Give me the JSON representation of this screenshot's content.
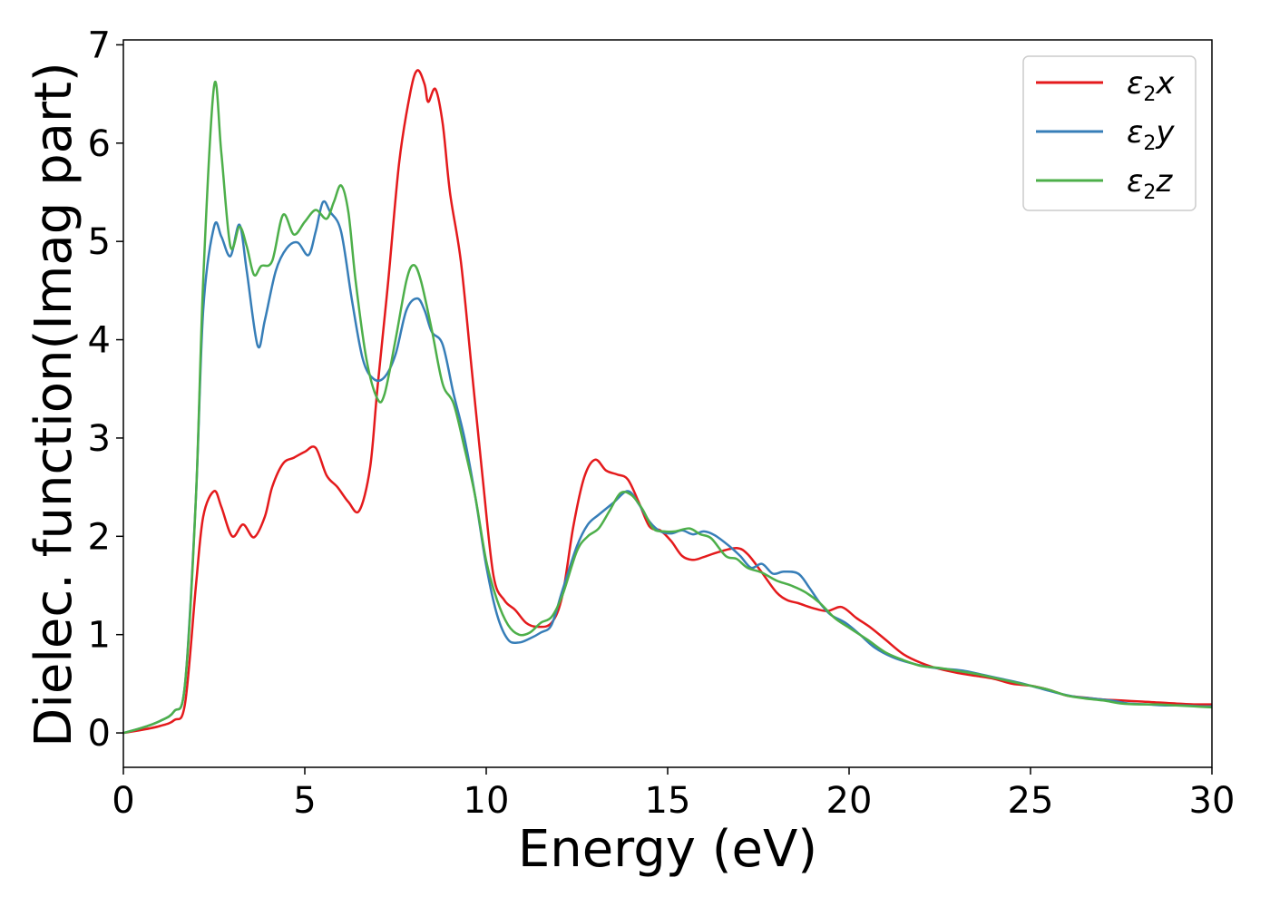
{
  "chart_data": {
    "type": "line",
    "xlabel": "Energy (eV)",
    "ylabel": "Dielec. function(Imag part)",
    "xlim": [
      0,
      30
    ],
    "ylim": [
      -0.35,
      7.05
    ],
    "xticks": [
      0,
      5,
      10,
      15,
      20,
      25,
      30
    ],
    "yticks": [
      0,
      1,
      2,
      3,
      4,
      5,
      6,
      7
    ],
    "grid": false,
    "legend_position": "top-right",
    "series": [
      {
        "name": "ε2x",
        "legend_base": "ε",
        "legend_sub": "2",
        "legend_suffix": "x",
        "color": "#e41a1c",
        "points": [
          [
            0,
            0
          ],
          [
            0.5,
            0.03
          ],
          [
            1.0,
            0.07
          ],
          [
            1.4,
            0.13
          ],
          [
            1.7,
            0.3
          ],
          [
            2.0,
            1.5
          ],
          [
            2.2,
            2.2
          ],
          [
            2.5,
            2.46
          ],
          [
            2.7,
            2.3
          ],
          [
            3.0,
            2.0
          ],
          [
            3.3,
            2.12
          ],
          [
            3.6,
            1.99
          ],
          [
            3.9,
            2.2
          ],
          [
            4.1,
            2.5
          ],
          [
            4.4,
            2.74
          ],
          [
            4.7,
            2.8
          ],
          [
            5.0,
            2.86
          ],
          [
            5.3,
            2.9
          ],
          [
            5.6,
            2.62
          ],
          [
            5.9,
            2.5
          ],
          [
            6.2,
            2.35
          ],
          [
            6.5,
            2.26
          ],
          [
            6.8,
            2.7
          ],
          [
            7.0,
            3.5
          ],
          [
            7.3,
            4.6
          ],
          [
            7.6,
            5.8
          ],
          [
            7.9,
            6.5
          ],
          [
            8.1,
            6.74
          ],
          [
            8.3,
            6.6
          ],
          [
            8.4,
            6.42
          ],
          [
            8.6,
            6.55
          ],
          [
            8.8,
            6.2
          ],
          [
            9.0,
            5.5
          ],
          [
            9.3,
            4.8
          ],
          [
            9.6,
            3.7
          ],
          [
            9.9,
            2.6
          ],
          [
            10.2,
            1.6
          ],
          [
            10.5,
            1.35
          ],
          [
            10.8,
            1.25
          ],
          [
            11.1,
            1.12
          ],
          [
            11.4,
            1.08
          ],
          [
            11.8,
            1.12
          ],
          [
            12.1,
            1.4
          ],
          [
            12.4,
            2.1
          ],
          [
            12.7,
            2.6
          ],
          [
            13.0,
            2.78
          ],
          [
            13.3,
            2.67
          ],
          [
            13.6,
            2.63
          ],
          [
            13.9,
            2.58
          ],
          [
            14.2,
            2.35
          ],
          [
            14.5,
            2.1
          ],
          [
            14.8,
            2.06
          ],
          [
            15.1,
            1.95
          ],
          [
            15.4,
            1.8
          ],
          [
            15.7,
            1.76
          ],
          [
            16.0,
            1.79
          ],
          [
            16.4,
            1.84
          ],
          [
            16.9,
            1.88
          ],
          [
            17.2,
            1.82
          ],
          [
            17.6,
            1.63
          ],
          [
            18.0,
            1.43
          ],
          [
            18.3,
            1.35
          ],
          [
            18.6,
            1.32
          ],
          [
            19.0,
            1.27
          ],
          [
            19.4,
            1.24
          ],
          [
            19.8,
            1.28
          ],
          [
            20.2,
            1.17
          ],
          [
            20.6,
            1.07
          ],
          [
            21.0,
            0.95
          ],
          [
            21.5,
            0.8
          ],
          [
            22.0,
            0.71
          ],
          [
            22.5,
            0.65
          ],
          [
            23.0,
            0.61
          ],
          [
            23.5,
            0.58
          ],
          [
            24.0,
            0.55
          ],
          [
            24.5,
            0.5
          ],
          [
            25.0,
            0.48
          ],
          [
            25.5,
            0.44
          ],
          [
            26.0,
            0.38
          ],
          [
            26.5,
            0.36
          ],
          [
            27.0,
            0.34
          ],
          [
            27.5,
            0.33
          ],
          [
            28.0,
            0.32
          ],
          [
            28.5,
            0.31
          ],
          [
            29.0,
            0.3
          ],
          [
            29.5,
            0.29
          ],
          [
            30.0,
            0.29
          ]
        ]
      },
      {
        "name": "ε2y",
        "legend_base": "ε",
        "legend_sub": "2",
        "legend_suffix": "y",
        "color": "#377eb8",
        "points": [
          [
            0,
            0
          ],
          [
            0.5,
            0.05
          ],
          [
            1.0,
            0.12
          ],
          [
            1.4,
            0.22
          ],
          [
            1.7,
            0.5
          ],
          [
            2.0,
            2.4
          ],
          [
            2.2,
            4.3
          ],
          [
            2.5,
            5.15
          ],
          [
            2.7,
            5.05
          ],
          [
            2.95,
            4.85
          ],
          [
            3.2,
            5.17
          ],
          [
            3.4,
            4.7
          ],
          [
            3.7,
            3.94
          ],
          [
            3.9,
            4.2
          ],
          [
            4.2,
            4.7
          ],
          [
            4.5,
            4.93
          ],
          [
            4.8,
            4.99
          ],
          [
            5.1,
            4.86
          ],
          [
            5.3,
            5.1
          ],
          [
            5.5,
            5.4
          ],
          [
            5.7,
            5.3
          ],
          [
            6.0,
            5.1
          ],
          [
            6.3,
            4.4
          ],
          [
            6.6,
            3.8
          ],
          [
            6.9,
            3.6
          ],
          [
            7.2,
            3.62
          ],
          [
            7.5,
            3.85
          ],
          [
            7.8,
            4.3
          ],
          [
            8.1,
            4.42
          ],
          [
            8.3,
            4.3
          ],
          [
            8.5,
            4.08
          ],
          [
            8.8,
            3.95
          ],
          [
            9.1,
            3.45
          ],
          [
            9.4,
            3.0
          ],
          [
            9.7,
            2.4
          ],
          [
            10.0,
            1.7
          ],
          [
            10.3,
            1.2
          ],
          [
            10.6,
            0.95
          ],
          [
            10.9,
            0.92
          ],
          [
            11.2,
            0.96
          ],
          [
            11.5,
            1.02
          ],
          [
            11.8,
            1.1
          ],
          [
            12.1,
            1.45
          ],
          [
            12.5,
            1.9
          ],
          [
            12.8,
            2.12
          ],
          [
            13.1,
            2.22
          ],
          [
            13.5,
            2.34
          ],
          [
            13.9,
            2.46
          ],
          [
            14.2,
            2.33
          ],
          [
            14.5,
            2.15
          ],
          [
            14.8,
            2.05
          ],
          [
            15.1,
            2.03
          ],
          [
            15.4,
            2.06
          ],
          [
            15.7,
            2.02
          ],
          [
            16.0,
            2.05
          ],
          [
            16.3,
            2.01
          ],
          [
            16.7,
            1.9
          ],
          [
            17.0,
            1.8
          ],
          [
            17.3,
            1.68
          ],
          [
            17.6,
            1.72
          ],
          [
            17.9,
            1.62
          ],
          [
            18.2,
            1.64
          ],
          [
            18.6,
            1.62
          ],
          [
            18.9,
            1.48
          ],
          [
            19.2,
            1.32
          ],
          [
            19.5,
            1.2
          ],
          [
            19.9,
            1.12
          ],
          [
            20.3,
            1.0
          ],
          [
            20.7,
            0.87
          ],
          [
            21.2,
            0.77
          ],
          [
            21.7,
            0.71
          ],
          [
            22.2,
            0.67
          ],
          [
            22.7,
            0.65
          ],
          [
            23.2,
            0.63
          ],
          [
            23.7,
            0.59
          ],
          [
            24.2,
            0.55
          ],
          [
            24.7,
            0.51
          ],
          [
            25.2,
            0.46
          ],
          [
            25.7,
            0.41
          ],
          [
            26.2,
            0.37
          ],
          [
            26.7,
            0.35
          ],
          [
            27.2,
            0.33
          ],
          [
            27.7,
            0.3
          ],
          [
            28.2,
            0.29
          ],
          [
            28.7,
            0.28
          ],
          [
            29.2,
            0.28
          ],
          [
            29.7,
            0.27
          ],
          [
            30.0,
            0.27
          ]
        ]
      },
      {
        "name": "ε2z",
        "legend_base": "ε",
        "legend_sub": "2",
        "legend_suffix": "z",
        "color": "#4daf4a",
        "points": [
          [
            0,
            0
          ],
          [
            0.5,
            0.05
          ],
          [
            1.0,
            0.12
          ],
          [
            1.4,
            0.22
          ],
          [
            1.7,
            0.5
          ],
          [
            2.0,
            2.4
          ],
          [
            2.2,
            4.6
          ],
          [
            2.5,
            6.58
          ],
          [
            2.7,
            5.9
          ],
          [
            2.95,
            4.95
          ],
          [
            3.2,
            5.15
          ],
          [
            3.4,
            4.95
          ],
          [
            3.6,
            4.66
          ],
          [
            3.8,
            4.75
          ],
          [
            4.1,
            4.8
          ],
          [
            4.4,
            5.27
          ],
          [
            4.7,
            5.07
          ],
          [
            5.0,
            5.2
          ],
          [
            5.3,
            5.32
          ],
          [
            5.6,
            5.23
          ],
          [
            5.8,
            5.4
          ],
          [
            6.0,
            5.57
          ],
          [
            6.2,
            5.3
          ],
          [
            6.4,
            4.6
          ],
          [
            6.7,
            3.8
          ],
          [
            7.0,
            3.4
          ],
          [
            7.2,
            3.45
          ],
          [
            7.5,
            4.0
          ],
          [
            7.8,
            4.6
          ],
          [
            8.0,
            4.76
          ],
          [
            8.2,
            4.6
          ],
          [
            8.5,
            4.1
          ],
          [
            8.8,
            3.55
          ],
          [
            9.1,
            3.35
          ],
          [
            9.4,
            2.9
          ],
          [
            9.7,
            2.4
          ],
          [
            10.0,
            1.75
          ],
          [
            10.3,
            1.35
          ],
          [
            10.6,
            1.1
          ],
          [
            10.9,
            1.0
          ],
          [
            11.2,
            1.02
          ],
          [
            11.5,
            1.12
          ],
          [
            11.8,
            1.18
          ],
          [
            12.1,
            1.4
          ],
          [
            12.5,
            1.85
          ],
          [
            12.8,
            2.0
          ],
          [
            13.1,
            2.08
          ],
          [
            13.4,
            2.26
          ],
          [
            13.7,
            2.44
          ],
          [
            14.0,
            2.42
          ],
          [
            14.3,
            2.28
          ],
          [
            14.6,
            2.08
          ],
          [
            14.9,
            2.05
          ],
          [
            15.2,
            2.05
          ],
          [
            15.6,
            2.08
          ],
          [
            15.9,
            2.02
          ],
          [
            16.2,
            1.98
          ],
          [
            16.6,
            1.8
          ],
          [
            16.9,
            1.77
          ],
          [
            17.2,
            1.68
          ],
          [
            17.6,
            1.63
          ],
          [
            18.0,
            1.55
          ],
          [
            18.4,
            1.5
          ],
          [
            18.8,
            1.43
          ],
          [
            19.2,
            1.32
          ],
          [
            19.6,
            1.17
          ],
          [
            20.0,
            1.07
          ],
          [
            20.5,
            0.95
          ],
          [
            21.0,
            0.82
          ],
          [
            21.5,
            0.74
          ],
          [
            22.0,
            0.68
          ],
          [
            22.5,
            0.66
          ],
          [
            23.0,
            0.63
          ],
          [
            23.5,
            0.6
          ],
          [
            24.0,
            0.56
          ],
          [
            24.5,
            0.52
          ],
          [
            25.0,
            0.48
          ],
          [
            25.5,
            0.44
          ],
          [
            26.0,
            0.38
          ],
          [
            26.5,
            0.35
          ],
          [
            27.0,
            0.33
          ],
          [
            27.5,
            0.3
          ],
          [
            28.0,
            0.29
          ],
          [
            28.5,
            0.29
          ],
          [
            29.0,
            0.28
          ],
          [
            29.5,
            0.27
          ],
          [
            30.0,
            0.26
          ]
        ]
      }
    ]
  }
}
